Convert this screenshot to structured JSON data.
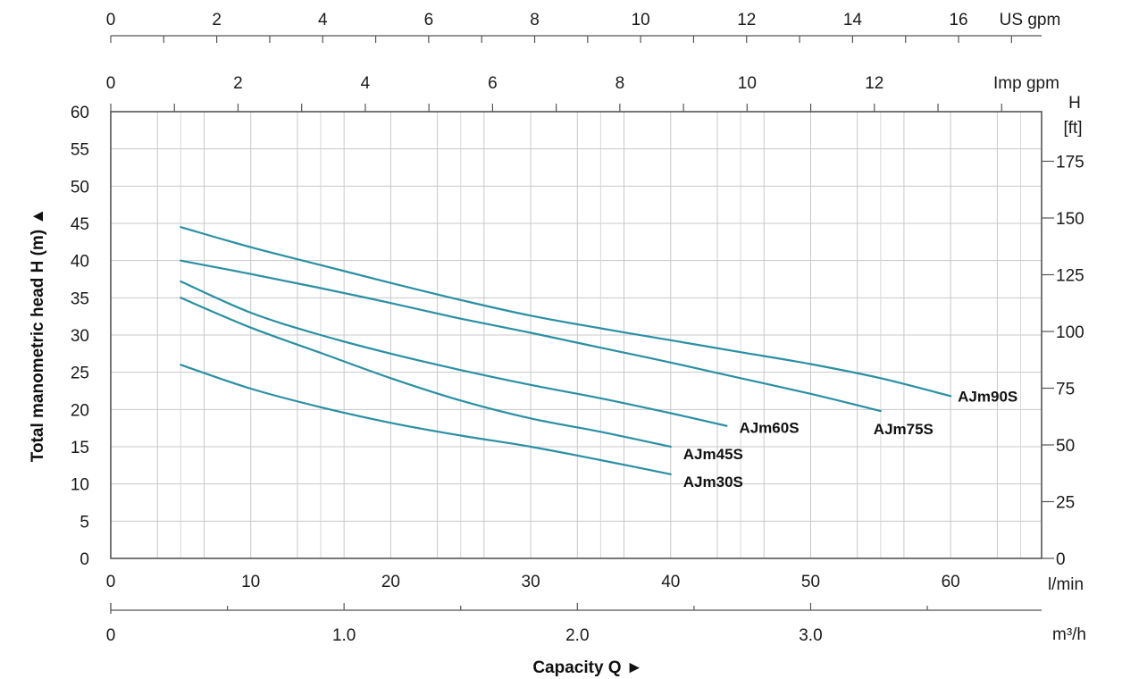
{
  "chart_data": {
    "type": "line",
    "title": "",
    "grid": true,
    "axes": {
      "y_left": {
        "label": "Total manometric head H (m) ▲",
        "unit": "m",
        "range": [
          0,
          60
        ],
        "ticks": [
          "0",
          "5",
          "10",
          "15",
          "20",
          "25",
          "30",
          "35",
          "40",
          "45",
          "50",
          "55",
          "60"
        ]
      },
      "y_right": {
        "label_line1": "H",
        "label_line2": "[ft]",
        "unit": "ft",
        "range": [
          0,
          196.85
        ],
        "ticks": [
          "0",
          "25",
          "50",
          "75",
          "100",
          "125",
          "150",
          "175"
        ]
      },
      "x_lmin": {
        "unit": "l/min",
        "range": [
          0,
          66.5
        ],
        "ticks": [
          "0",
          "10",
          "20",
          "30",
          "40",
          "50",
          "60"
        ]
      },
      "x_m3h": {
        "unit": "m³/h",
        "ticks": [
          "0",
          "1.0",
          "2.0",
          "3.0"
        ]
      },
      "x_usgpm": {
        "unit": "US gpm",
        "ticks": [
          "0",
          "2",
          "4",
          "6",
          "8",
          "10",
          "12",
          "14",
          "16"
        ]
      },
      "x_impgpm": {
        "unit": "Imp gpm",
        "ticks": [
          "0",
          "2",
          "4",
          "6",
          "8",
          "10",
          "12"
        ]
      },
      "xlabel": "Capacity Q ►"
    },
    "xlabel": "Capacity Q ►",
    "ylabel": "Total manometric head H (m) ▲",
    "series": [
      {
        "name": "AJm90S",
        "color": "#2b8fa3",
        "x": [
          5,
          10,
          15,
          20,
          25,
          30,
          35,
          40,
          45,
          50,
          55,
          60
        ],
        "y": [
          44.5,
          41.8,
          39.4,
          37.0,
          34.7,
          32.6,
          30.9,
          29.3,
          27.7,
          26.1,
          24.2,
          21.8
        ]
      },
      {
        "name": "AJm75S",
        "color": "#2b8fa3",
        "x": [
          5,
          10,
          15,
          20,
          25,
          30,
          35,
          40,
          45,
          50,
          55
        ],
        "y": [
          40.0,
          38.2,
          36.3,
          34.3,
          32.2,
          30.3,
          28.3,
          26.3,
          24.2,
          22.1,
          19.8
        ]
      },
      {
        "name": "AJm60S",
        "color": "#2b8fa3",
        "x": [
          5,
          10,
          15,
          20,
          25,
          30,
          35,
          40,
          44
        ],
        "y": [
          37.2,
          33.0,
          30.0,
          27.5,
          25.3,
          23.3,
          21.5,
          19.5,
          17.8
        ]
      },
      {
        "name": "AJm45S",
        "color": "#2b8fa3",
        "x": [
          5,
          10,
          15,
          20,
          25,
          30,
          35,
          40
        ],
        "y": [
          35.0,
          31.0,
          27.6,
          24.2,
          21.2,
          18.8,
          17.0,
          15.0
        ]
      },
      {
        "name": "AJm30S",
        "color": "#2b8fa3",
        "x": [
          5,
          10,
          15,
          20,
          25,
          30,
          35,
          40
        ],
        "y": [
          26.0,
          22.8,
          20.3,
          18.2,
          16.5,
          15.0,
          13.2,
          11.3
        ]
      }
    ]
  }
}
